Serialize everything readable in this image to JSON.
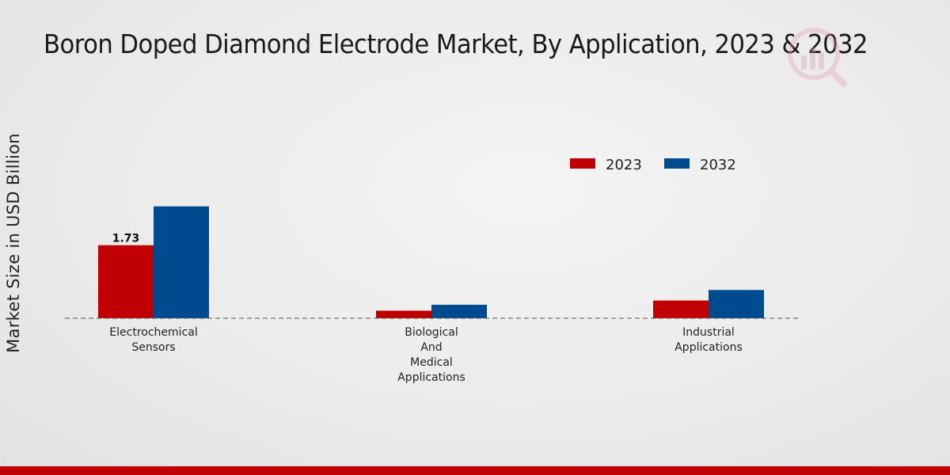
{
  "chart_data": {
    "type": "bar",
    "title": "Boron Doped Diamond Electrode Market, By Application, 2023 & 2032",
    "xlabel": "",
    "ylabel": "Market Size in USD Billion",
    "categories": [
      [
        "Electrochemical",
        "Sensors"
      ],
      [
        "Biological",
        "And",
        "Medical",
        "Applications"
      ],
      [
        "Industrial",
        "Applications"
      ]
    ],
    "series": [
      {
        "name": "2023",
        "color": "#c00000",
        "values": [
          1.73,
          0.18,
          0.42
        ]
      },
      {
        "name": "2032",
        "color": "#004a8f",
        "values": [
          2.65,
          0.32,
          0.67
        ]
      }
    ],
    "data_labels": [
      {
        "series": 0,
        "index": 0,
        "text": "1.73"
      }
    ],
    "ylim": [
      0,
      4.5
    ],
    "grid": false,
    "legend": "top-right"
  }
}
